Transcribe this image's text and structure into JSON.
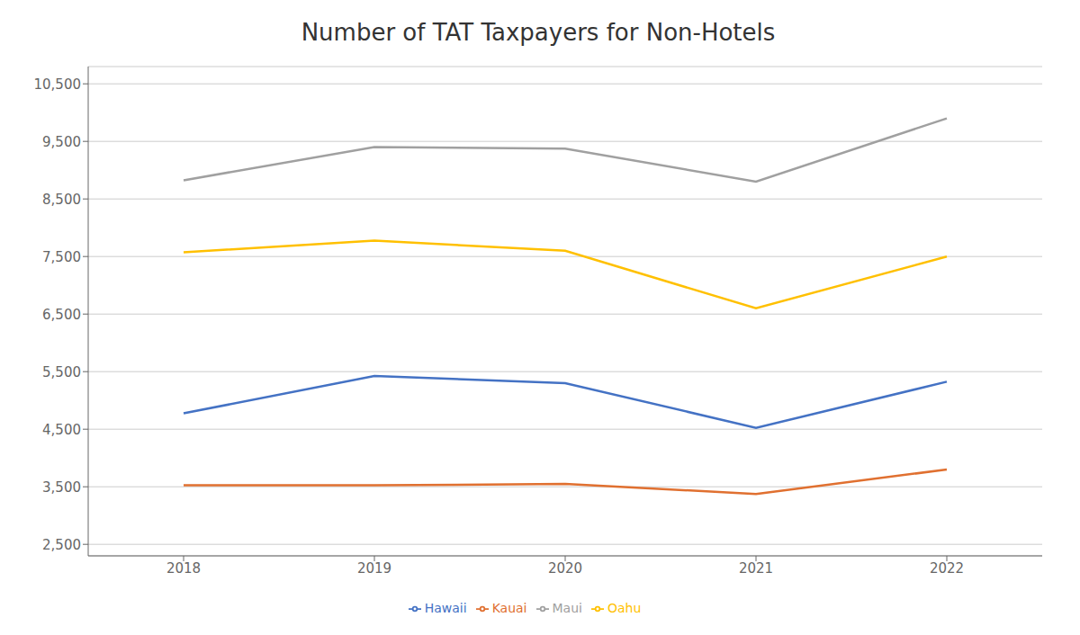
{
  "chart_data": {
    "type": "line",
    "title": "Number of TAT Taxpayers for Non-Hotels",
    "x": [
      2018,
      2019,
      2020,
      2021,
      2022
    ],
    "series": [
      {
        "name": "Oahu",
        "color": "#FFC000",
        "values": [
          7575,
          7775,
          7600,
          6600,
          7500
        ]
      },
      {
        "name": "Maui",
        "color": "#A0A0A0",
        "values": [
          8825,
          9400,
          9375,
          8800,
          9900
        ]
      },
      {
        "name": "Hawaii",
        "color": "#4472C4",
        "values": [
          4775,
          5425,
          5300,
          4525,
          5325
        ]
      },
      {
        "name": "Kauai",
        "color": "#E07030",
        "values": [
          3525,
          3525,
          3550,
          3375,
          3800
        ]
      }
    ],
    "xlim": [
      2017.5,
      2022.5
    ],
    "xticks": [
      2018,
      2019,
      2020,
      2021,
      2022
    ],
    "ylim": [
      2300,
      10800
    ],
    "yticks": [
      {
        "value": 2500,
        "label": "2,500"
      },
      {
        "value": 3500,
        "label": "3,500"
      },
      {
        "value": 4500,
        "label": "4,500"
      },
      {
        "value": 5500,
        "label": "5,500"
      },
      {
        "value": 6500,
        "label": "6,500"
      },
      {
        "value": 7500,
        "label": "7,500"
      },
      {
        "value": 8500,
        "label": "8,500"
      },
      {
        "value": 9500,
        "label": "9,500"
      },
      {
        "value": 10500,
        "label": "10,500"
      }
    ],
    "grid": "y",
    "legend": "bottom"
  }
}
